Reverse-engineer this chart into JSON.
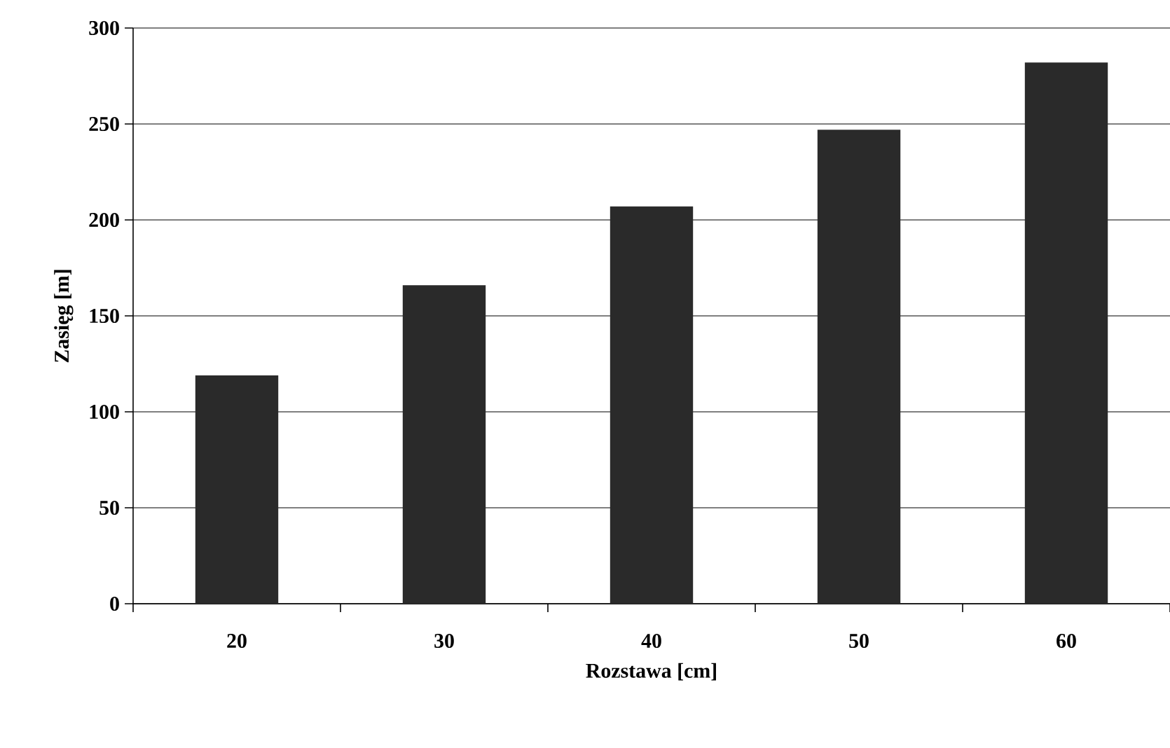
{
  "chart_data": {
    "type": "bar",
    "xlabel": "Rozstawa [cm]",
    "ylabel": "Zasięg [m]",
    "categories": [
      "20",
      "30",
      "40",
      "50",
      "60"
    ],
    "values": [
      119,
      166,
      207,
      247,
      282
    ],
    "color": "#2a2a2a",
    "ylim": [
      0,
      300
    ],
    "yticks": [
      0,
      50,
      100,
      150,
      200,
      250,
      300
    ],
    "grid": "y"
  }
}
